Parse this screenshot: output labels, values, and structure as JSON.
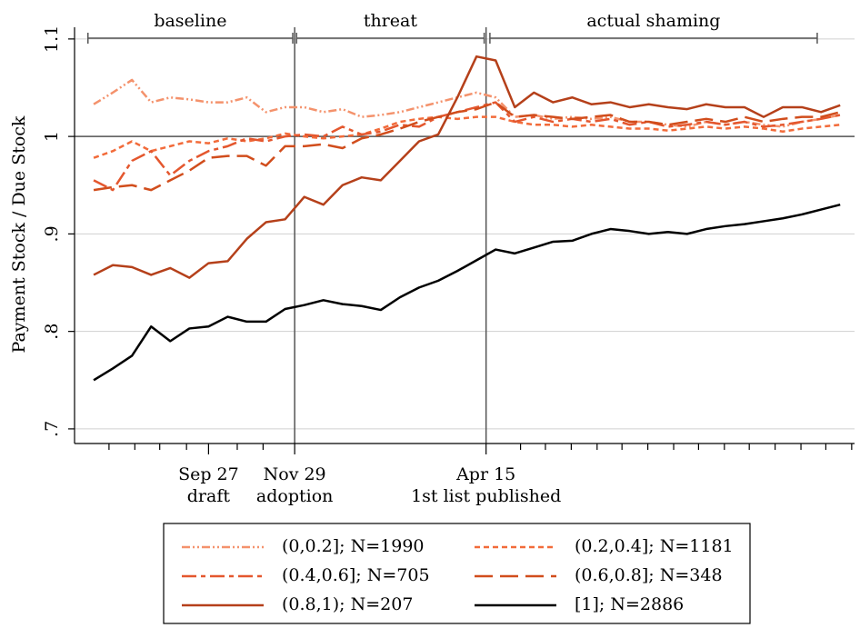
{
  "chart_data": {
    "type": "line",
    "ylabel": "Payment Stock / Due Stock",
    "x": [
      -12,
      -10,
      -8,
      -6,
      -4,
      -2,
      0,
      2,
      4,
      6,
      8,
      10,
      12,
      14,
      16,
      18,
      20,
      22,
      24,
      26,
      28,
      30,
      32,
      34,
      36,
      38,
      40,
      42,
      44,
      46,
      48,
      50,
      52,
      54,
      56,
      58,
      60,
      62,
      64,
      66
    ],
    "xlim": [
      -14,
      67.5
    ],
    "xticks": [
      {
        "value": 0,
        "label": [
          "Sep 27",
          "draft"
        ]
      },
      {
        "value": 9,
        "label": [
          "Nov 29",
          "adoption"
        ]
      },
      {
        "value": 29,
        "label": [
          "Apr 15",
          "1st list published"
        ]
      }
    ],
    "xminor_ticks": [
      -10.4,
      -7.7,
      -5.1,
      -2.3,
      3.0,
      5.7,
      32.6,
      35.2,
      37.9,
      40.6,
      43.2,
      45.9,
      48.6,
      51.2,
      53.9,
      56.5,
      59.2,
      61.9,
      64.5,
      67.2
    ],
    "ylim": [
      0.685,
      1.112
    ],
    "yticks": [
      {
        "value": 0.7,
        "label": ".7"
      },
      {
        "value": 0.8,
        "label": ".8"
      },
      {
        "value": 0.9,
        "label": ".9"
      },
      1,
      1.1
    ],
    "grid": true,
    "hline": 1,
    "vlines": [
      9,
      29
    ],
    "periods": [
      {
        "label": "baseline",
        "start": -12.6,
        "end": 8.8
      },
      {
        "label": "threat",
        "start": 9.2,
        "end": 28.8
      },
      {
        "label": "actual shaming",
        "start": 29.4,
        "end": 63.6
      }
    ],
    "legend": "bottom",
    "series": [
      {
        "name": "(0,0.2]; N=1990",
        "color": "#f4926c",
        "dash": "9,3,2,3,2,3",
        "values": [
          1.033,
          1.045,
          1.058,
          1.035,
          1.04,
          1.038,
          1.035,
          1.035,
          1.04,
          1.025,
          1.03,
          1.03,
          1.025,
          1.028,
          1.02,
          1.022,
          1.025,
          1.03,
          1.035,
          1.04,
          1.045,
          1.04,
          1.02,
          1.022,
          1.018,
          1.02,
          1.018,
          1.02,
          1.015,
          1.015,
          1.012,
          1.01,
          1.015,
          1.012,
          1.015,
          1.012,
          1.01,
          1.015,
          1.018,
          1.022
        ]
      },
      {
        "name": "(0.2,0.4]; N=1181",
        "color": "#f26b3a",
        "dash": "6,4",
        "values": [
          0.978,
          0.985,
          0.995,
          0.985,
          0.99,
          0.995,
          0.993,
          0.998,
          0.995,
          0.998,
          1.003,
          1.0,
          0.998,
          1.0,
          1.002,
          1.008,
          1.015,
          1.018,
          1.02,
          1.018,
          1.02,
          1.02,
          1.015,
          1.012,
          1.012,
          1.01,
          1.012,
          1.01,
          1.008,
          1.008,
          1.006,
          1.008,
          1.01,
          1.008,
          1.01,
          1.008,
          1.005,
          1.008,
          1.01,
          1.012
        ]
      },
      {
        "name": "(0.4,0.6]; N=705",
        "color": "#e4572e",
        "dash": "16,5,5,5",
        "values": [
          0.955,
          0.945,
          0.975,
          0.985,
          0.96,
          0.975,
          0.985,
          0.99,
          0.998,
          0.995,
          1.0,
          1.002,
          1.0,
          1.01,
          1.002,
          1.005,
          1.012,
          1.01,
          1.02,
          1.025,
          1.03,
          1.035,
          1.015,
          1.02,
          1.015,
          1.018,
          1.015,
          1.018,
          1.012,
          1.015,
          1.01,
          1.012,
          1.015,
          1.012,
          1.015,
          1.01,
          1.012,
          1.015,
          1.018,
          1.022
        ]
      },
      {
        "name": "(0.6,0.8]; N=348",
        "color": "#d14d1c",
        "dash": "20,8",
        "values": [
          0.945,
          0.948,
          0.95,
          0.945,
          0.955,
          0.965,
          0.978,
          0.98,
          0.98,
          0.97,
          0.99,
          0.99,
          0.992,
          0.988,
          0.998,
          1.002,
          1.008,
          1.015,
          1.02,
          1.025,
          1.028,
          1.035,
          1.02,
          1.022,
          1.02,
          1.018,
          1.02,
          1.022,
          1.015,
          1.015,
          1.012,
          1.015,
          1.018,
          1.015,
          1.02,
          1.015,
          1.018,
          1.02,
          1.02,
          1.025
        ]
      },
      {
        "name": "(0.8,1); N=207",
        "color": "#b5401a",
        "values": [
          0.858,
          0.868,
          0.866,
          0.858,
          0.865,
          0.855,
          0.87,
          0.872,
          0.895,
          0.912,
          0.915,
          0.938,
          0.93,
          0.95,
          0.958,
          0.955,
          0.975,
          0.995,
          1.002,
          1.04,
          1.082,
          1.078,
          1.03,
          1.045,
          1.035,
          1.04,
          1.033,
          1.035,
          1.03,
          1.033,
          1.03,
          1.028,
          1.033,
          1.03,
          1.03,
          1.02,
          1.03,
          1.03,
          1.025,
          1.032
        ]
      },
      {
        "name": "[1]; N=2886",
        "color": "#000000",
        "values": [
          0.75,
          0.762,
          0.775,
          0.805,
          0.79,
          0.803,
          0.805,
          0.815,
          0.81,
          0.81,
          0.823,
          0.827,
          0.832,
          0.828,
          0.826,
          0.822,
          0.835,
          0.845,
          0.852,
          0.862,
          0.873,
          0.884,
          0.88,
          0.886,
          0.892,
          0.893,
          0.9,
          0.905,
          0.903,
          0.9,
          0.902,
          0.9,
          0.905,
          0.908,
          0.91,
          0.913,
          0.916,
          0.92,
          0.925,
          0.93
        ]
      }
    ]
  }
}
